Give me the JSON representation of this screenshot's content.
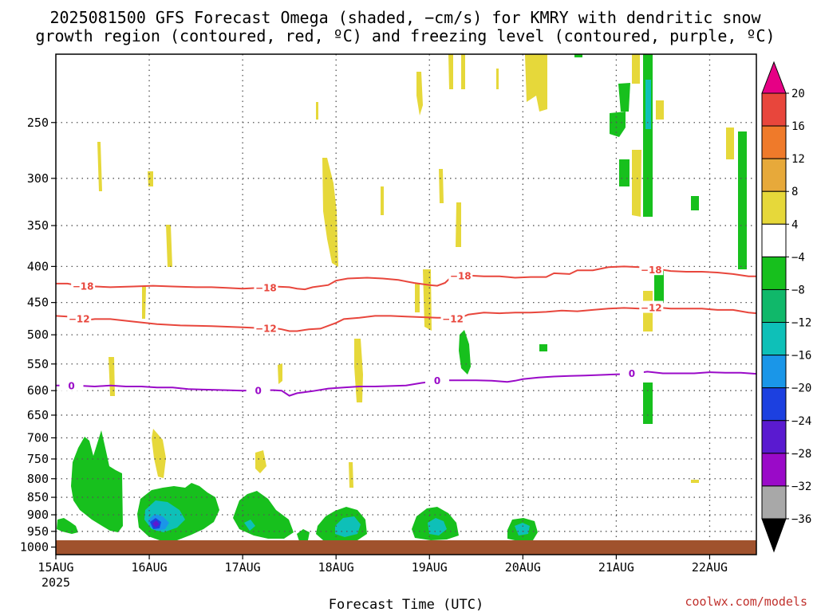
{
  "header": {
    "title_line1": "2025081500 GFS Forecast Omega (shaded, −cm/s) for KMRY with dendritic snow",
    "title_line2": "growth region (contoured, red, ºC) and freezing level (contoured, purple, ºC)"
  },
  "footer": {
    "credit": "coolwx.com/models"
  },
  "colors": {
    "ground": "#a0522d",
    "dendritic_contour": "#e8463c",
    "freezing_contour": "#9a0ac8",
    "grid": "#555555"
  },
  "chart_data": {
    "type": "heatmap",
    "xlabel": "Forecast Time (UTC)",
    "x_ticks": [
      {
        "label": "15AUG",
        "sub": "2025",
        "hours": 0
      },
      {
        "label": "16AUG",
        "sub": "",
        "hours": 24
      },
      {
        "label": "17AUG",
        "sub": "",
        "hours": 48
      },
      {
        "label": "18AUG",
        "sub": "",
        "hours": 72
      },
      {
        "label": "19AUG",
        "sub": "",
        "hours": 96
      },
      {
        "label": "20AUG",
        "sub": "",
        "hours": 120
      },
      {
        "label": "21AUG",
        "sub": "",
        "hours": 144
      },
      {
        "label": "22AUG",
        "sub": "",
        "hours": 168
      }
    ],
    "x_range_hours": [
      0,
      180
    ],
    "y_scale": "log",
    "y_range_hpa": [
      1025,
      200
    ],
    "y_ticks": [
      250,
      300,
      350,
      400,
      450,
      500,
      550,
      600,
      650,
      700,
      750,
      800,
      850,
      900,
      950,
      1000
    ],
    "grid": true,
    "colorbar": {
      "levels": [
        20,
        16,
        12,
        8,
        4,
        -4,
        -8,
        -12,
        -16,
        -20,
        -24,
        -28,
        -32,
        -36
      ],
      "colors": [
        "#e8463c",
        "#ef7a2a",
        "#e7a93a",
        "#e6d83a",
        "#ffffff",
        "#17c01d",
        "#10b86a",
        "#0ec0b8",
        "#1a96e8",
        "#1c40e0",
        "#5a1ad0",
        "#9a0ac8",
        "#a8a8a8"
      ],
      "top_color": "#e60085",
      "bottom_color": "#000000"
    },
    "contours": [
      {
        "value": "-18",
        "points": [
          [
            0,
            423
          ],
          [
            3,
            423
          ],
          [
            6,
            426
          ],
          [
            10,
            427
          ],
          [
            14,
            428
          ],
          [
            20,
            427
          ],
          [
            25,
            426
          ],
          [
            30,
            427
          ],
          [
            36,
            428
          ],
          [
            40,
            428
          ],
          [
            44,
            429
          ],
          [
            48,
            430
          ],
          [
            52,
            429
          ],
          [
            56,
            427
          ],
          [
            60,
            428
          ],
          [
            62,
            430
          ],
          [
            64,
            431
          ],
          [
            66,
            428
          ],
          [
            70,
            425
          ],
          [
            72,
            419
          ],
          [
            75,
            416
          ],
          [
            80,
            415
          ],
          [
            84,
            416
          ],
          [
            88,
            418
          ],
          [
            92,
            422
          ],
          [
            96,
            425
          ],
          [
            98,
            426
          ],
          [
            100,
            422
          ],
          [
            102,
            412
          ],
          [
            106,
            412
          ],
          [
            110,
            413
          ],
          [
            114,
            413
          ],
          [
            118,
            415
          ],
          [
            122,
            414
          ],
          [
            126,
            414
          ],
          [
            128,
            409
          ],
          [
            132,
            410
          ],
          [
            134,
            405
          ],
          [
            138,
            405
          ],
          [
            142,
            401
          ],
          [
            146,
            400
          ],
          [
            150,
            401
          ],
          [
            154,
            403
          ],
          [
            158,
            406
          ],
          [
            162,
            407
          ],
          [
            166,
            407
          ],
          [
            170,
            408
          ],
          [
            174,
            410
          ],
          [
            178,
            413
          ],
          [
            180,
            413
          ]
        ],
        "labels": [
          [
            7,
            426
          ],
          [
            54,
            428
          ],
          [
            104,
            412
          ],
          [
            153,
            404
          ]
        ]
      },
      {
        "value": "-12",
        "points": [
          [
            0,
            470
          ],
          [
            3,
            471
          ],
          [
            6,
            478
          ],
          [
            10,
            475
          ],
          [
            14,
            475
          ],
          [
            20,
            479
          ],
          [
            26,
            483
          ],
          [
            32,
            485
          ],
          [
            40,
            486
          ],
          [
            44,
            487
          ],
          [
            48,
            488
          ],
          [
            52,
            489
          ],
          [
            56,
            489
          ],
          [
            58,
            491
          ],
          [
            60,
            494
          ],
          [
            62,
            494
          ],
          [
            65,
            491
          ],
          [
            68,
            490
          ],
          [
            72,
            481
          ],
          [
            74,
            475
          ],
          [
            78,
            473
          ],
          [
            82,
            470
          ],
          [
            86,
            470
          ],
          [
            90,
            471
          ],
          [
            94,
            472
          ],
          [
            98,
            473
          ],
          [
            100,
            473
          ],
          [
            102,
            474
          ],
          [
            104,
            473
          ],
          [
            106,
            468
          ],
          [
            110,
            465
          ],
          [
            114,
            466
          ],
          [
            118,
            465
          ],
          [
            122,
            465
          ],
          [
            126,
            464
          ],
          [
            130,
            462
          ],
          [
            134,
            463
          ],
          [
            138,
            461
          ],
          [
            142,
            459
          ],
          [
            146,
            458
          ],
          [
            150,
            459
          ],
          [
            154,
            457
          ],
          [
            158,
            459
          ],
          [
            162,
            459
          ],
          [
            166,
            459
          ],
          [
            170,
            461
          ],
          [
            174,
            461
          ],
          [
            178,
            465
          ],
          [
            180,
            466
          ]
        ],
        "labels": [
          [
            6,
            474
          ],
          [
            54,
            489
          ],
          [
            102,
            474
          ],
          [
            153,
            457
          ]
        ]
      },
      {
        "value": "0",
        "points": [
          [
            0,
            590
          ],
          [
            5,
            590
          ],
          [
            10,
            592
          ],
          [
            14,
            590
          ],
          [
            18,
            592
          ],
          [
            22,
            592
          ],
          [
            26,
            594
          ],
          [
            30,
            594
          ],
          [
            34,
            597
          ],
          [
            38,
            598
          ],
          [
            44,
            599
          ],
          [
            48,
            600
          ],
          [
            52,
            599
          ],
          [
            56,
            599
          ],
          [
            58,
            600
          ],
          [
            60,
            610
          ],
          [
            62,
            605
          ],
          [
            66,
            601
          ],
          [
            70,
            596
          ],
          [
            74,
            594
          ],
          [
            78,
            592
          ],
          [
            82,
            592
          ],
          [
            86,
            591
          ],
          [
            90,
            590
          ],
          [
            94,
            585
          ],
          [
            96,
            583
          ],
          [
            100,
            580
          ],
          [
            104,
            580
          ],
          [
            108,
            580
          ],
          [
            112,
            581
          ],
          [
            116,
            583
          ],
          [
            118,
            581
          ],
          [
            120,
            578
          ],
          [
            124,
            575
          ],
          [
            128,
            573
          ],
          [
            132,
            572
          ],
          [
            136,
            571
          ],
          [
            140,
            570
          ],
          [
            144,
            569
          ],
          [
            148,
            568
          ],
          [
            152,
            564
          ],
          [
            156,
            567
          ],
          [
            160,
            567
          ],
          [
            164,
            567
          ],
          [
            168,
            565
          ],
          [
            172,
            566
          ],
          [
            176,
            566
          ],
          [
            180,
            568
          ]
        ],
        "labels": [
          [
            4,
            590
          ],
          [
            52,
            599
          ],
          [
            98,
            580
          ],
          [
            148,
            566
          ]
        ]
      }
    ],
    "omega_regions": [
      {
        "class": 5,
        "hours": [
          4.5,
          5,
          4.9,
          5.2,
          5.7,
          4.5,
          5.1
        ],
        "p": [
          900,
          895,
          880,
          850,
          840,
          800,
          720
        ],
        "points_note": "low"
      }
    ]
  }
}
